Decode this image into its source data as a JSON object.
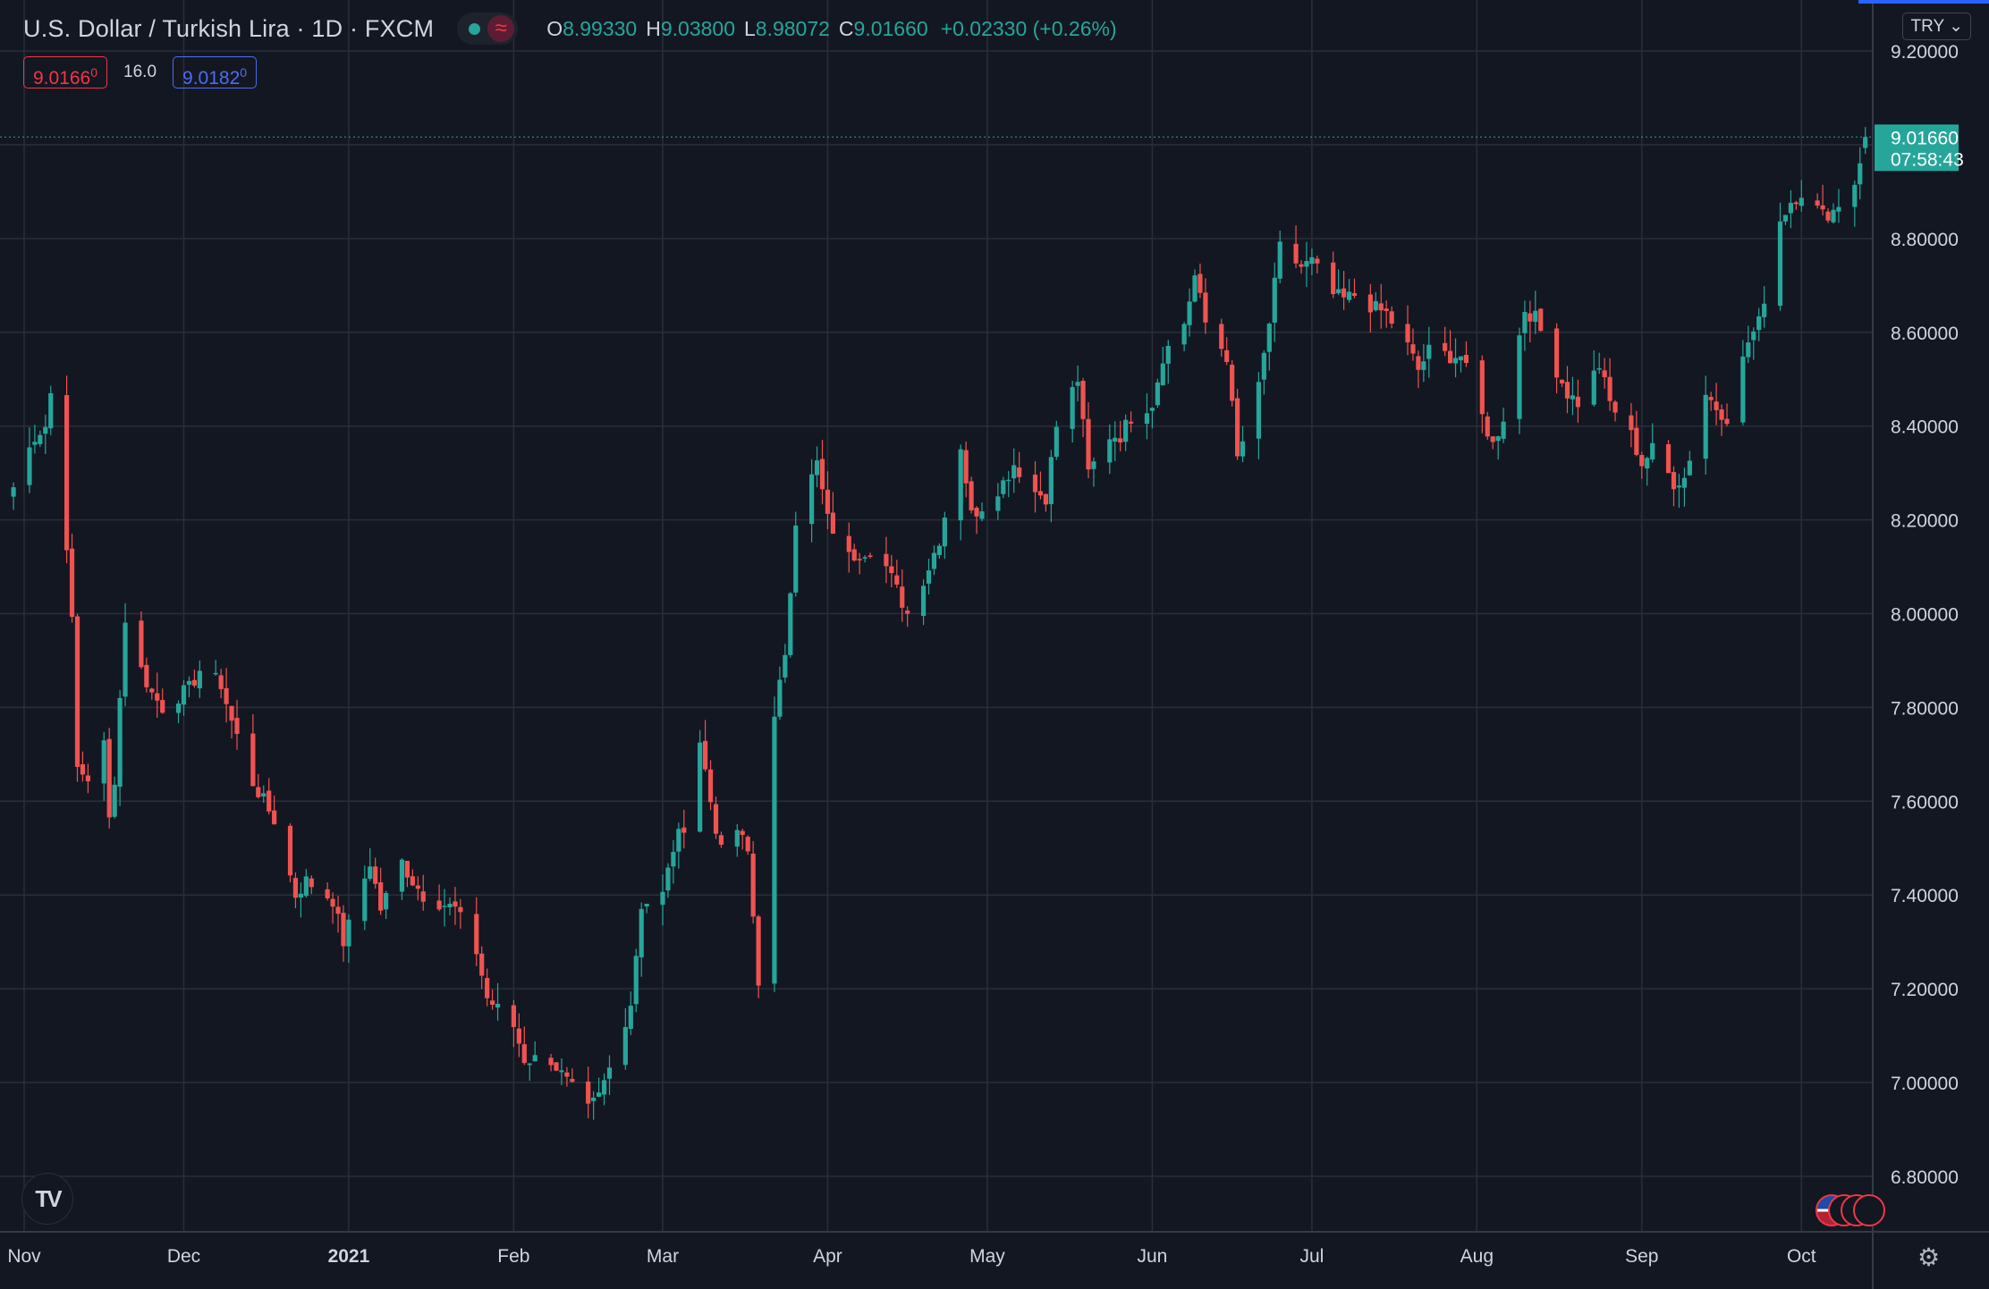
{
  "header": {
    "symbol_title": "U.S. Dollar / Turkish Lira · 1D · FXCM",
    "ohlc": {
      "o_label": "O",
      "o_value": "8.99330",
      "h_label": "H",
      "h_value": "9.03800",
      "l_label": "L",
      "l_value": "8.98072",
      "c_label": "C",
      "c_value": "9.01660",
      "change": "+0.02330 (+0.26%)"
    },
    "sell_price": "9.0166",
    "sell_price_sup": "0",
    "spread": "16.0",
    "buy_price": "9.0182",
    "buy_price_sup": "0",
    "currency_button": "TRY ⌄"
  },
  "colors": {
    "background": "#131722",
    "up": "#26a69a",
    "down": "#ef5350",
    "grid": "#2a2e39",
    "axis_text": "#d1d4dc"
  },
  "icons": [
    "eye-toggle-icon",
    "indicator-wave-icon",
    "tradingview-logo-icon",
    "us-flag-events-icon",
    "settings-gear-icon"
  ],
  "chart_data": {
    "type": "candlestick",
    "grid": true,
    "price_scale": "right",
    "ylim": [
      6.7,
      9.25
    ],
    "y_ticks": [
      "9.20000",
      "9.00000",
      "8.80000",
      "8.60000",
      "8.40000",
      "8.20000",
      "8.00000",
      "7.80000",
      "7.60000",
      "7.40000",
      "7.20000",
      "7.00000",
      "6.80000"
    ],
    "x_ticks": [
      "Nov",
      "Dec",
      "2021",
      "Feb",
      "Mar",
      "Apr",
      "May",
      "Jun",
      "Jul",
      "Aug",
      "Sep",
      "Oct"
    ],
    "x_tick_dates": [
      "2020-11-01",
      "2020-12-01",
      "2021-01-01",
      "2021-02-01",
      "2021-03-01",
      "2021-04-01",
      "2021-05-01",
      "2021-06-01",
      "2021-07-01",
      "2021-08-01",
      "2021-09-01",
      "2021-10-01"
    ],
    "last_price_label": "9.01660",
    "countdown": "07:58:43",
    "anchors": [
      [
        "2020-10-30",
        8.27
      ],
      [
        "2020-11-03",
        8.38
      ],
      [
        "2020-11-05",
        8.4
      ],
      [
        "2020-11-06",
        8.47
      ],
      [
        "2020-11-09",
        8.15
      ],
      [
        "2020-11-10",
        7.98
      ],
      [
        "2020-11-11",
        7.67
      ],
      [
        "2020-11-13",
        7.65
      ],
      [
        "2020-11-16",
        7.72
      ],
      [
        "2020-11-17",
        7.56
      ],
      [
        "2020-11-18",
        7.65
      ],
      [
        "2020-11-20",
        7.99
      ],
      [
        "2020-11-23",
        7.88
      ],
      [
        "2020-11-25",
        7.83
      ],
      [
        "2020-11-27",
        7.8
      ],
      [
        "2020-12-02",
        7.84
      ],
      [
        "2020-12-04",
        7.88
      ],
      [
        "2020-12-08",
        7.85
      ],
      [
        "2020-12-10",
        7.77
      ],
      [
        "2020-12-14",
        7.64
      ],
      [
        "2020-12-18",
        7.56
      ],
      [
        "2020-12-22",
        7.4
      ],
      [
        "2020-12-24",
        7.43
      ],
      [
        "2020-12-29",
        7.39
      ],
      [
        "2020-12-31",
        7.3
      ],
      [
        "2021-01-05",
        7.47
      ],
      [
        "2021-01-07",
        7.37
      ],
      [
        "2021-01-11",
        7.47
      ],
      [
        "2021-01-13",
        7.43
      ],
      [
        "2021-01-15",
        7.4
      ],
      [
        "2021-01-19",
        7.38
      ],
      [
        "2021-01-21",
        7.37
      ],
      [
        "2021-01-25",
        7.28
      ],
      [
        "2021-01-27",
        7.18
      ],
      [
        "2021-02-01",
        7.12
      ],
      [
        "2021-02-03",
        7.05
      ],
      [
        "2021-02-08",
        7.05
      ],
      [
        "2021-02-11",
        7.0
      ],
      [
        "2021-02-15",
        6.94
      ],
      [
        "2021-02-17",
        6.97
      ],
      [
        "2021-02-19",
        7.03
      ],
      [
        "2021-02-23",
        7.17
      ],
      [
        "2021-02-25",
        7.38
      ],
      [
        "2021-03-01",
        7.4
      ],
      [
        "2021-03-03",
        7.5
      ],
      [
        "2021-03-05",
        7.55
      ],
      [
        "2021-03-08",
        7.73
      ],
      [
        "2021-03-10",
        7.6
      ],
      [
        "2021-03-12",
        7.49
      ],
      [
        "2021-03-15",
        7.54
      ],
      [
        "2021-03-17",
        7.49
      ],
      [
        "2021-03-19",
        7.22
      ],
      [
        "2021-03-22",
        7.77
      ],
      [
        "2021-03-24",
        7.92
      ],
      [
        "2021-03-26",
        8.2
      ],
      [
        "2021-03-30",
        8.32
      ],
      [
        "2021-04-01",
        8.2
      ],
      [
        "2021-04-05",
        8.12
      ],
      [
        "2021-04-07",
        8.13
      ],
      [
        "2021-04-09",
        8.14
      ],
      [
        "2021-04-12",
        8.1
      ],
      [
        "2021-04-14",
        8.05
      ],
      [
        "2021-04-16",
        8.0
      ],
      [
        "2021-04-20",
        8.1
      ],
      [
        "2021-04-22",
        8.16
      ],
      [
        "2021-04-26",
        8.36
      ],
      [
        "2021-04-28",
        8.21
      ],
      [
        "2021-04-30",
        8.23
      ],
      [
        "2021-05-04",
        8.28
      ],
      [
        "2021-05-06",
        8.32
      ],
      [
        "2021-05-10",
        8.26
      ],
      [
        "2021-05-12",
        8.25
      ],
      [
        "2021-05-14",
        8.4
      ],
      [
        "2021-05-18",
        8.5
      ],
      [
        "2021-05-20",
        8.3
      ],
      [
        "2021-05-24",
        8.38
      ],
      [
        "2021-05-26",
        8.38
      ],
      [
        "2021-05-28",
        8.42
      ],
      [
        "2021-06-01",
        8.45
      ],
      [
        "2021-06-03",
        8.55
      ],
      [
        "2021-06-07",
        8.62
      ],
      [
        "2021-06-09",
        8.72
      ],
      [
        "2021-06-11",
        8.62
      ],
      [
        "2021-06-15",
        8.55
      ],
      [
        "2021-06-17",
        8.33
      ],
      [
        "2021-06-21",
        8.48
      ],
      [
        "2021-06-23",
        8.62
      ],
      [
        "2021-06-25",
        8.78
      ],
      [
        "2021-06-29",
        8.74
      ],
      [
        "2021-07-01",
        8.75
      ],
      [
        "2021-07-05",
        8.68
      ],
      [
        "2021-07-07",
        8.67
      ],
      [
        "2021-07-09",
        8.68
      ],
      [
        "2021-07-13",
        8.65
      ],
      [
        "2021-07-15",
        8.64
      ],
      [
        "2021-07-19",
        8.57
      ],
      [
        "2021-07-21",
        8.52
      ],
      [
        "2021-07-23",
        8.56
      ],
      [
        "2021-07-27",
        8.55
      ],
      [
        "2021-07-29",
        8.55
      ],
      [
        "2021-08-02",
        8.42
      ],
      [
        "2021-08-04",
        8.36
      ],
      [
        "2021-08-06",
        8.42
      ],
      [
        "2021-08-10",
        8.65
      ],
      [
        "2021-08-12",
        8.63
      ],
      [
        "2021-08-16",
        8.52
      ],
      [
        "2021-08-18",
        8.47
      ],
      [
        "2021-08-20",
        8.45
      ],
      [
        "2021-08-24",
        8.53
      ],
      [
        "2021-08-26",
        8.45
      ],
      [
        "2021-08-30",
        8.38
      ],
      [
        "2021-09-01",
        8.32
      ],
      [
        "2021-09-03",
        8.35
      ],
      [
        "2021-09-07",
        8.28
      ],
      [
        "2021-09-09",
        8.29
      ],
      [
        "2021-09-13",
        8.47
      ],
      [
        "2021-09-15",
        8.44
      ],
      [
        "2021-09-17",
        8.42
      ],
      [
        "2021-09-21",
        8.58
      ],
      [
        "2021-09-23",
        8.62
      ],
      [
        "2021-09-27",
        8.84
      ],
      [
        "2021-09-29",
        8.88
      ],
      [
        "2021-10-01",
        8.9
      ],
      [
        "2021-10-05",
        8.85
      ],
      [
        "2021-10-07",
        8.86
      ],
      [
        "2021-10-11",
        8.92
      ],
      [
        "2021-10-13",
        9.02
      ]
    ]
  }
}
